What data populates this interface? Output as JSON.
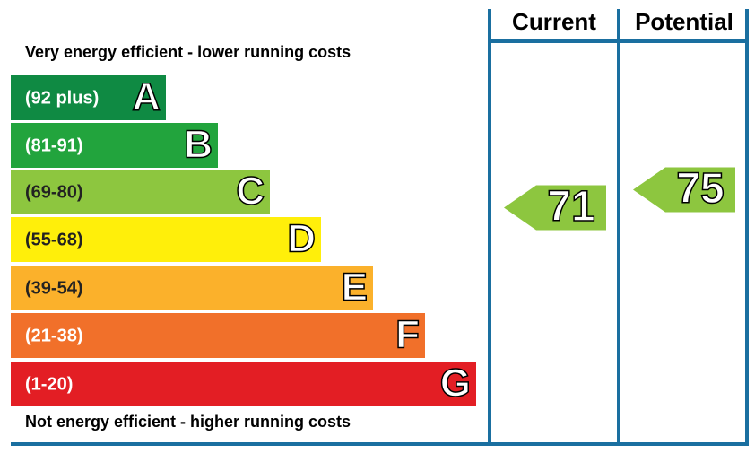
{
  "chart_data": {
    "type": "energy-rating",
    "columns": [
      "Current",
      "Potential"
    ],
    "top_note": "Very energy efficient - lower running costs",
    "bottom_note": "Not energy efficient - higher running costs",
    "bands": [
      {
        "range": "(92 plus)",
        "letter": "A",
        "color": "#0f8a43"
      },
      {
        "range": "(81-91)",
        "letter": "B",
        "color": "#22a43d"
      },
      {
        "range": "(69-80)",
        "letter": "C",
        "color": "#8dc63f"
      },
      {
        "range": "(55-68)",
        "letter": "D",
        "color": "#ffef0a"
      },
      {
        "range": "(39-54)",
        "letter": "E",
        "color": "#fbb12b"
      },
      {
        "range": "(21-38)",
        "letter": "F",
        "color": "#f1702a"
      },
      {
        "range": "(1-20)",
        "letter": "G",
        "color": "#e31e24"
      }
    ],
    "values": [
      71,
      75
    ],
    "line_color": "#1a6fa0"
  }
}
